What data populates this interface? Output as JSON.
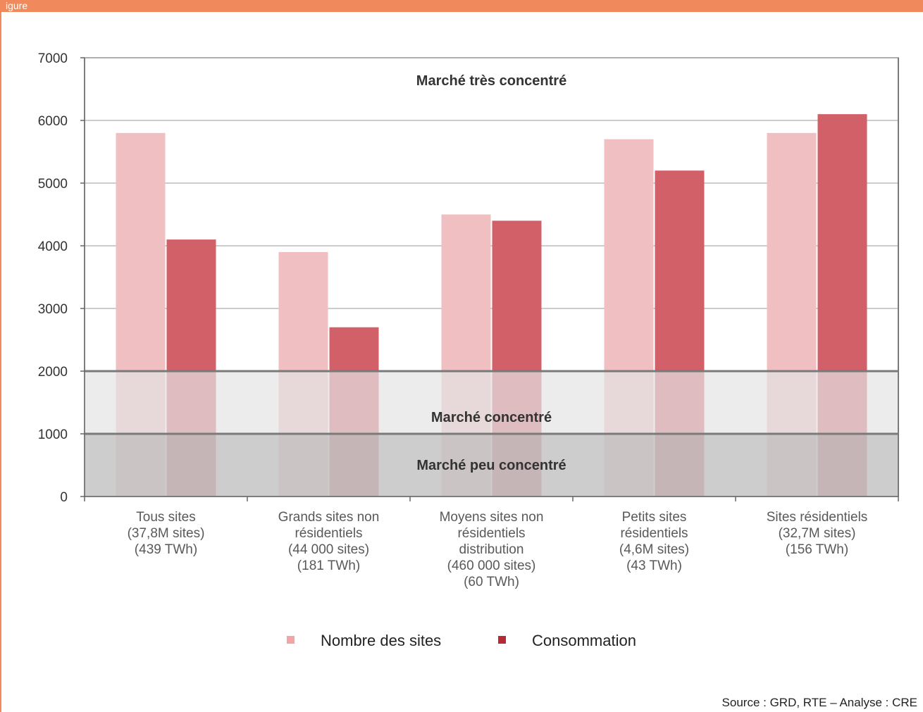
{
  "header": {
    "title": "igure"
  },
  "source": "Source : GRD, RTE – Analyse : CRE",
  "chart_data": {
    "type": "bar",
    "title": "",
    "xlabel": "",
    "ylabel": "",
    "ylim": [
      0,
      7000
    ],
    "yticks": [
      0,
      1000,
      2000,
      3000,
      4000,
      5000,
      6000,
      7000
    ],
    "grid": true,
    "legend_position": "bottom",
    "categories": [
      [
        "Tous sites",
        "(37,8M sites)",
        "(439 TWh)"
      ],
      [
        "Grands sites non",
        "résidentiels",
        "(44 000 sites)",
        "(181 TWh)"
      ],
      [
        "Moyens sites non",
        "résidentiels",
        "distribution",
        "(460 000 sites)",
        "(60 TWh)"
      ],
      [
        "Petits sites",
        "résidentiels",
        "(4,6M sites)",
        "(43 TWh)"
      ],
      [
        "Sites résidentiels",
        "(32,7M sites)",
        "(156 TWh)"
      ]
    ],
    "series": [
      {
        "name": "Nombre des sites",
        "values": [
          5800,
          3900,
          4500,
          5700,
          5800
        ],
        "color": "#efbfc2",
        "legend_color": "#f4a3a6"
      },
      {
        "name": "Consommation",
        "values": [
          4100,
          2700,
          4400,
          5200,
          6100
        ],
        "color": "#d16068",
        "legend_color": "#b52a35"
      }
    ],
    "zones": [
      {
        "label": "Marché peu concentré",
        "from": 0,
        "to": 1000,
        "color": "#c4c4c4",
        "opacity": 0.85
      },
      {
        "label": "Marché concentré",
        "from": 1000,
        "to": 2000,
        "color": "#e4e4e4",
        "opacity": 0.7
      },
      {
        "label": "Marché très concentré",
        "from": 2000,
        "to": 7000
      }
    ]
  }
}
